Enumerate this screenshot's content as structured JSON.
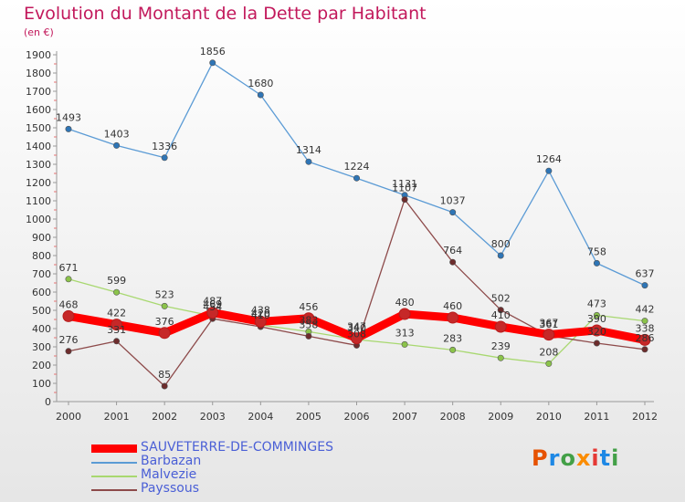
{
  "header": {
    "title": "Evolution du Montant de la Dette par Habitant",
    "subtitle": "(en €)"
  },
  "logo": {
    "text": "Proxiti",
    "colors": [
      "#e65100",
      "#1e88e5",
      "#43a047",
      "#fb8c00",
      "#e53935",
      "#1e88e5",
      "#43a047"
    ]
  },
  "chart_data": {
    "type": "line",
    "title": "Evolution du Montant de la Dette par Habitant",
    "subtitle": "(en €)",
    "x": [
      "2000",
      "2001",
      "2002",
      "2003",
      "2004",
      "2005",
      "2006",
      "2007",
      "2008",
      "2009",
      "2010",
      "2011",
      "2012"
    ],
    "ylim": [
      0,
      1900
    ],
    "yticks": [
      0,
      100,
      200,
      300,
      400,
      500,
      600,
      700,
      800,
      900,
      1000,
      1100,
      1200,
      1300,
      1400,
      1500,
      1600,
      1700,
      1800,
      1900
    ],
    "grid": false,
    "legend_position": "bottom-left",
    "series": [
      {
        "name": "SAUVETERRE-DE-COMMINGES",
        "color": "#ff0000",
        "marker": "#c62828",
        "bold": true,
        "values": [
          468,
          422,
          376,
          487,
          438,
          456,
          347,
          480,
          460,
          410,
          367,
          390,
          338
        ]
      },
      {
        "name": "Barbazan",
        "color": "#5b9bd5",
        "marker": "#2e75b6",
        "bold": false,
        "values": [
          1493,
          1403,
          1336,
          1856,
          1680,
          1314,
          1224,
          1131,
          1037,
          800,
          1264,
          758,
          637
        ]
      },
      {
        "name": "Malvezie",
        "color": "#a8d870",
        "marker": "#8bc34a",
        "bold": false,
        "values": [
          671,
          599,
          523,
          469,
          420,
          383,
          340,
          313,
          283,
          239,
          208,
          473,
          442
        ]
      },
      {
        "name": "Payssous",
        "color": "#8d4a4a",
        "marker": "#6d2c2c",
        "bold": false,
        "values": [
          276,
          331,
          85,
          454,
          410,
          358,
          308,
          1107,
          764,
          502,
          361,
          320,
          286
        ]
      }
    ]
  }
}
